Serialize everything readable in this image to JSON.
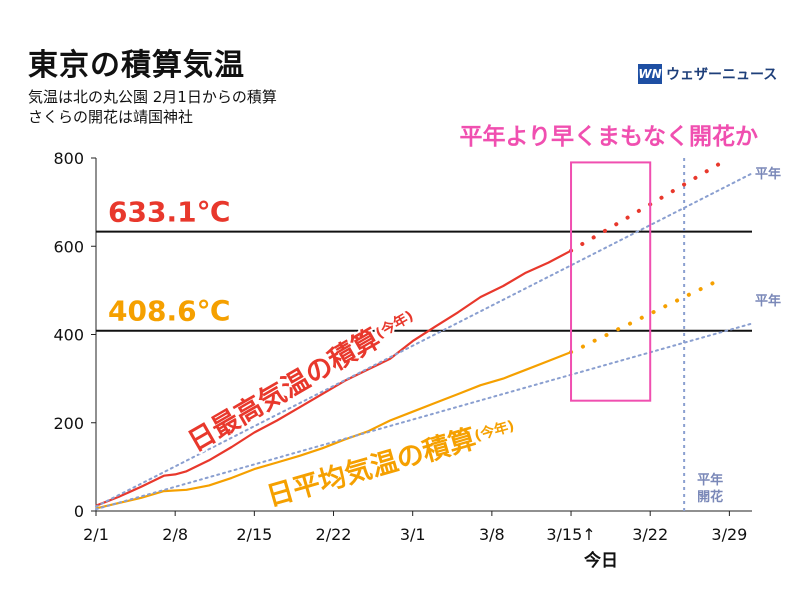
{
  "header": {
    "title": "東京の積算気温",
    "subtitle_1": "気温は北の丸公園 2月1日からの積算",
    "subtitle_2": "さくらの開花は靖国神社"
  },
  "brand": {
    "icon": "weathernews-logo-icon",
    "mark": "WN",
    "name": "ウェザーニュース",
    "color": "#1e4fa3"
  },
  "chart_data": {
    "type": "line",
    "x_tick_labels": [
      "2/1",
      "2/8",
      "2/15",
      "2/22",
      "3/1",
      "3/8",
      "3/15↑",
      "3/22",
      "3/29"
    ],
    "x_ticks_day": [
      0,
      7,
      14,
      21,
      28,
      35,
      42,
      49,
      56
    ],
    "today_label": "今日",
    "xlim": [
      0,
      58
    ],
    "ylim": [
      0,
      800
    ],
    "y_ticks": [
      0,
      200,
      400,
      600,
      800
    ],
    "grid": false,
    "headline": "平年より早くまもなく開花か",
    "thresholds": [
      {
        "value": 633.1,
        "label": "633.1℃",
        "color": "#e8382c"
      },
      {
        "value": 408.6,
        "label": "408.6℃",
        "color": "#f5a000"
      }
    ],
    "normal_bloom": {
      "day": 52,
      "label_1": "平年",
      "label_2": "開花"
    },
    "forecast_box": {
      "x": [
        42,
        49
      ],
      "y": [
        250,
        790
      ]
    },
    "series": [
      {
        "name": "日最高気温の積算",
        "name_suffix": "(今年)",
        "color": "#e8382c",
        "x": [
          0,
          2,
          4,
          6,
          7,
          8,
          10,
          12,
          14,
          16,
          18,
          20,
          22,
          24,
          26,
          28,
          30,
          32,
          34,
          36,
          38,
          40,
          42
        ],
        "y": [
          12,
          32,
          55,
          80,
          83,
          90,
          115,
          145,
          178,
          205,
          235,
          265,
          295,
          320,
          345,
          385,
          418,
          450,
          485,
          510,
          540,
          563,
          590
        ]
      },
      {
        "name": "",
        "color": "#e8382c",
        "dotted": true,
        "x": [
          42,
          43,
          44,
          45,
          46,
          47,
          48,
          49,
          50,
          51,
          52,
          53,
          54,
          55
        ],
        "y": [
          590,
          605,
          620,
          635,
          650,
          665,
          680,
          695,
          710,
          725,
          740,
          755,
          770,
          785
        ]
      },
      {
        "name": "日平均気温の積算",
        "name_suffix": "(今年)",
        "color": "#f5a000",
        "x": [
          0,
          2,
          4,
          6,
          8,
          10,
          12,
          14,
          16,
          18,
          20,
          22,
          24,
          26,
          28,
          30,
          32,
          34,
          36,
          38,
          40,
          42
        ],
        "y": [
          6,
          18,
          30,
          45,
          48,
          58,
          75,
          95,
          110,
          125,
          142,
          162,
          180,
          205,
          225,
          245,
          265,
          285,
          300,
          320,
          340,
          360
        ]
      },
      {
        "name": "",
        "color": "#f5a000",
        "dotted": true,
        "x": [
          42,
          43,
          44,
          45,
          46,
          47,
          48,
          49,
          50,
          51,
          52,
          53,
          54,
          55
        ],
        "y": [
          360,
          372,
          385,
          397,
          410,
          422,
          435,
          447,
          460,
          472,
          485,
          497,
          510,
          522
        ]
      },
      {
        "name": "平年",
        "color": "#8a9fd0",
        "dotted": true,
        "x": [
          0,
          58
        ],
        "y": [
          10,
          765
        ]
      },
      {
        "name": "平年",
        "color": "#8a9fd0",
        "dotted": true,
        "x": [
          0,
          58
        ],
        "y": [
          4,
          425
        ]
      }
    ]
  }
}
